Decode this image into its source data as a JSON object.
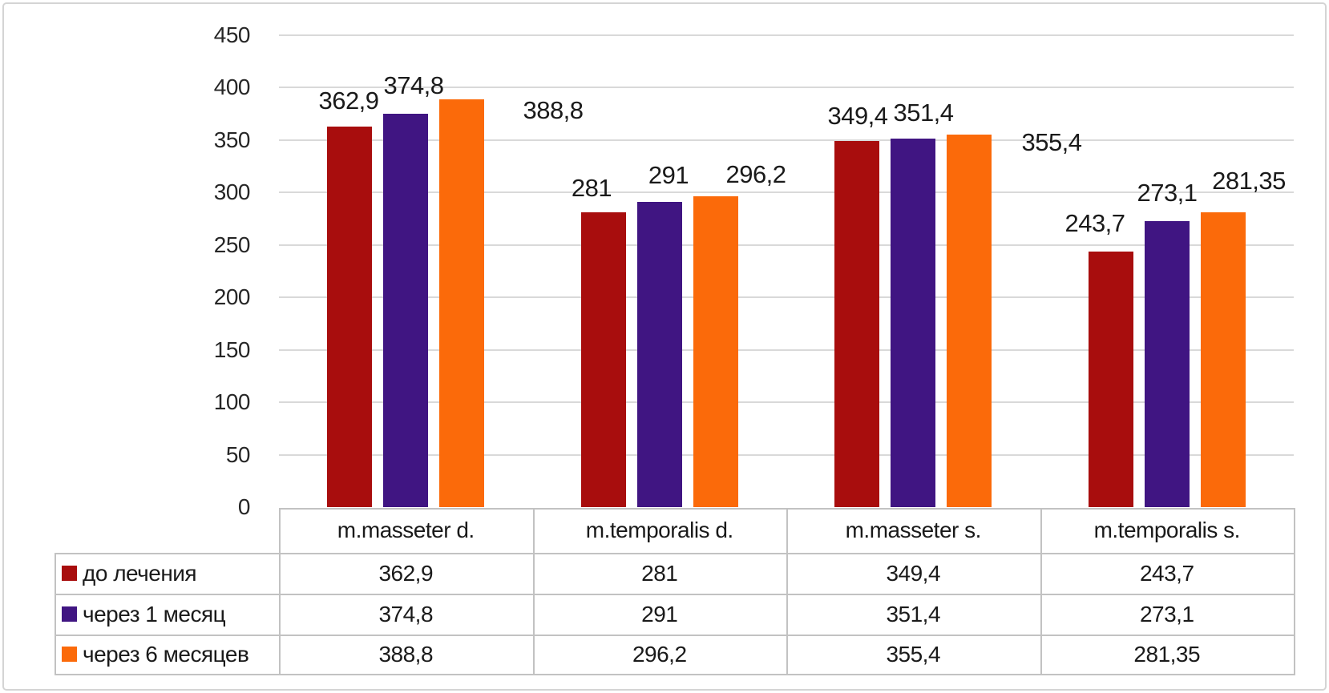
{
  "chart_data": {
    "type": "bar",
    "title": "",
    "xlabel": "",
    "ylabel": "",
    "categories": [
      "m.masseter d.",
      "m.temporalis d.",
      "m.masseter s.",
      "m.temporalis s."
    ],
    "series": [
      {
        "name": "до лечения",
        "color": "#a80d0d",
        "values": [
          362.9,
          281,
          349.4,
          243.7
        ],
        "labels": [
          "362,9",
          "281",
          "349,4",
          "243,7"
        ]
      },
      {
        "name": "через 1 месяц",
        "color": "#401582",
        "values": [
          374.8,
          291,
          351.4,
          273.1
        ],
        "labels": [
          "374,8",
          "291",
          "351,4",
          "273,1"
        ]
      },
      {
        "name": "через 6 месяцев",
        "color": "#fb6a0a",
        "values": [
          388.8,
          296.2,
          355.4,
          281.35
        ],
        "labels": [
          "388,8",
          "296,2",
          "355,4",
          "281,35"
        ]
      }
    ],
    "y_axis": {
      "min": 0,
      "max": 450,
      "step": 50,
      "ticks": [
        0,
        50,
        100,
        150,
        200,
        250,
        300,
        350,
        400,
        450
      ],
      "tick_labels": [
        "0",
        "50",
        "100",
        "150",
        "200",
        "250",
        "300",
        "350",
        "400",
        "450"
      ]
    },
    "grid": true,
    "legend_position": "data-table-left-column",
    "data_table_shown": true,
    "label_offsets": [
      [
        [
          -1,
          -20
        ],
        [
          -15,
          -18
        ],
        [
          1,
          -19
        ],
        [
          -20,
          -23
        ]
      ],
      [
        [
          10,
          -23
        ],
        [
          11,
          -21
        ],
        [
          13,
          -20
        ],
        [
          0,
          -23
        ]
      ],
      [
        [
          114,
          26
        ],
        [
          50,
          -15
        ],
        [
          103,
          22
        ],
        [
          32,
          -27
        ]
      ]
    ],
    "colors": {
      "background": "#ffffff",
      "gridline": "#d9d9d9",
      "table_border": "#c2c2c2",
      "text": "#1a1a1a",
      "frame": "#d4d4d4"
    }
  }
}
